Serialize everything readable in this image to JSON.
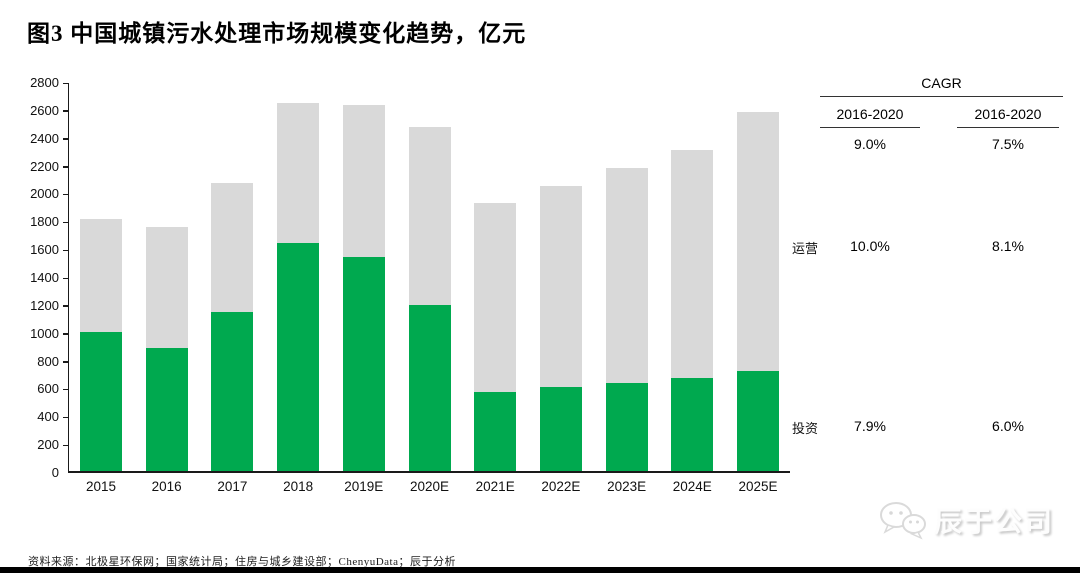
{
  "title": "图3 中国城镇污水处理市场规模变化趋势，亿元",
  "chart_data": {
    "type": "bar",
    "stacked": true,
    "title": "中国城镇污水处理市场规模变化趋势",
    "unit": "亿元",
    "categories": [
      "2015",
      "2016",
      "2017",
      "2018",
      "2019E",
      "2020E",
      "2021E",
      "2022E",
      "2023E",
      "2024E",
      "2025E"
    ],
    "series": [
      {
        "name": "投资",
        "color": "#00A94F",
        "values": [
          1000,
          880,
          1140,
          1635,
          1535,
          1190,
          565,
          600,
          635,
          670,
          715
        ]
      },
      {
        "name": "运营",
        "color": "#D9D9D9",
        "values": [
          810,
          870,
          925,
          1005,
          1095,
          1280,
          1360,
          1445,
          1540,
          1635,
          1865
        ]
      }
    ],
    "totals": [
      1810,
      1750,
      2065,
      2640,
      2630,
      2470,
      1925,
      2045,
      2175,
      2305,
      2580
    ],
    "ylim": [
      0,
      2800
    ],
    "ytick_step": 200,
    "grid": false,
    "legend_position": "right-panel-labels",
    "xlabel": "",
    "ylabel": ""
  },
  "cagr_panel": {
    "title": "CAGR",
    "columns": [
      "2016-2020",
      "2016-2020"
    ],
    "total_row": [
      "9.0%",
      "7.5%"
    ],
    "rows": [
      {
        "label": "运营",
        "values": [
          "10.0%",
          "8.1%"
        ]
      },
      {
        "label": "投资",
        "values": [
          "7.9%",
          "6.0%"
        ]
      }
    ]
  },
  "footer": {
    "source": "资料来源：北极星环保网；国家统计局；住房与城乡建设部；ChenyuData；辰于分析",
    "watermark": "辰于公司",
    "watermark_icon": "wechat-icon"
  },
  "colors": {
    "investment_green": "#00A94F",
    "operations_gray": "#D9D9D9",
    "axis_black": "#1a1a1a"
  }
}
